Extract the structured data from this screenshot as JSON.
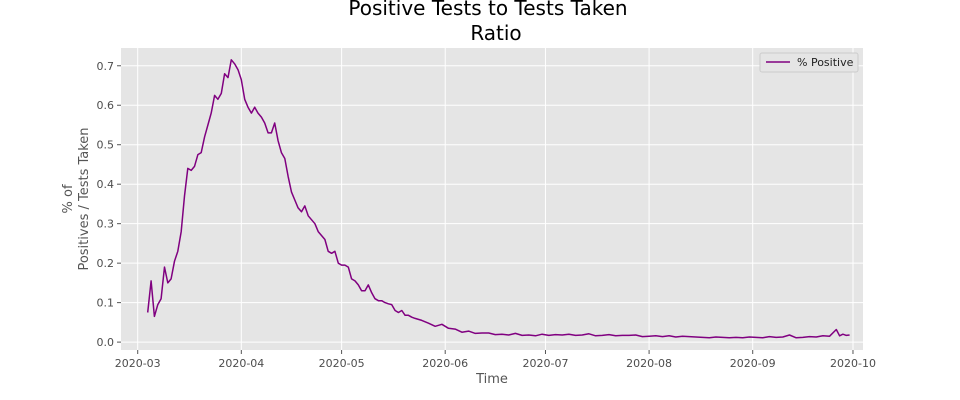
{
  "chart_data": {
    "type": "line",
    "title_lines": [
      "Positive Tests to Tests Taken",
      "Ratio"
    ],
    "xlabel": "Time",
    "ylabel_lines": [
      "% of",
      "Positives / Tests Taken"
    ],
    "xlim": [
      "2020-02-25",
      "2020-10-04"
    ],
    "ylim": [
      -0.02,
      0.745
    ],
    "x_ticks": [
      "2020-03",
      "2020-04",
      "2020-05",
      "2020-06",
      "2020-07",
      "2020-08",
      "2020-09",
      "2020-10"
    ],
    "x_tick_dates": [
      "2020-03-01",
      "2020-04-01",
      "2020-05-01",
      "2020-06-01",
      "2020-07-01",
      "2020-08-01",
      "2020-09-01",
      "2020-10-01"
    ],
    "y_ticks": [
      0.0,
      0.1,
      0.2,
      0.3,
      0.4,
      0.5,
      0.6,
      0.7
    ],
    "y_tick_labels": [
      "0.0",
      "0.1",
      "0.2",
      "0.3",
      "0.4",
      "0.5",
      "0.6",
      "0.7"
    ],
    "grid": true,
    "legend_position": "top-right",
    "series": [
      {
        "name": "% Positive",
        "color": "#800080",
        "x": [
          "2020-03-04",
          "2020-03-05",
          "2020-03-06",
          "2020-03-07",
          "2020-03-08",
          "2020-03-09",
          "2020-03-10",
          "2020-03-11",
          "2020-03-12",
          "2020-03-13",
          "2020-03-14",
          "2020-03-15",
          "2020-03-16",
          "2020-03-17",
          "2020-03-18",
          "2020-03-19",
          "2020-03-20",
          "2020-03-21",
          "2020-03-22",
          "2020-03-23",
          "2020-03-24",
          "2020-03-25",
          "2020-03-26",
          "2020-03-27",
          "2020-03-28",
          "2020-03-29",
          "2020-03-30",
          "2020-03-31",
          "2020-04-01",
          "2020-04-02",
          "2020-04-03",
          "2020-04-04",
          "2020-04-05",
          "2020-04-06",
          "2020-04-07",
          "2020-04-08",
          "2020-04-09",
          "2020-04-10",
          "2020-04-11",
          "2020-04-12",
          "2020-04-13",
          "2020-04-14",
          "2020-04-15",
          "2020-04-16",
          "2020-04-17",
          "2020-04-18",
          "2020-04-19",
          "2020-04-20",
          "2020-04-21",
          "2020-04-22",
          "2020-04-23",
          "2020-04-24",
          "2020-04-25",
          "2020-04-26",
          "2020-04-27",
          "2020-04-28",
          "2020-04-29",
          "2020-04-30",
          "2020-05-01",
          "2020-05-02",
          "2020-05-03",
          "2020-05-04",
          "2020-05-05",
          "2020-05-06",
          "2020-05-07",
          "2020-05-08",
          "2020-05-09",
          "2020-05-10",
          "2020-05-11",
          "2020-05-12",
          "2020-05-13",
          "2020-05-14",
          "2020-05-15",
          "2020-05-16",
          "2020-05-17",
          "2020-05-18",
          "2020-05-19",
          "2020-05-20",
          "2020-05-21",
          "2020-05-22",
          "2020-05-23",
          "2020-05-25",
          "2020-05-27",
          "2020-05-29",
          "2020-05-31",
          "2020-06-02",
          "2020-06-04",
          "2020-06-06",
          "2020-06-08",
          "2020-06-10",
          "2020-06-12",
          "2020-06-14",
          "2020-06-16",
          "2020-06-18",
          "2020-06-20",
          "2020-06-22",
          "2020-06-24",
          "2020-06-26",
          "2020-06-28",
          "2020-06-30",
          "2020-07-02",
          "2020-07-04",
          "2020-07-06",
          "2020-07-08",
          "2020-07-10",
          "2020-07-12",
          "2020-07-14",
          "2020-07-16",
          "2020-07-18",
          "2020-07-20",
          "2020-07-22",
          "2020-07-24",
          "2020-07-26",
          "2020-07-28",
          "2020-07-30",
          "2020-08-01",
          "2020-08-03",
          "2020-08-05",
          "2020-08-07",
          "2020-08-09",
          "2020-08-11",
          "2020-08-13",
          "2020-08-15",
          "2020-08-17",
          "2020-08-19",
          "2020-08-21",
          "2020-08-23",
          "2020-08-25",
          "2020-08-27",
          "2020-08-29",
          "2020-08-31",
          "2020-09-02",
          "2020-09-04",
          "2020-09-06",
          "2020-09-08",
          "2020-09-10",
          "2020-09-12",
          "2020-09-14",
          "2020-09-16",
          "2020-09-18",
          "2020-09-20",
          "2020-09-22",
          "2020-09-24",
          "2020-09-26",
          "2020-09-27",
          "2020-09-28",
          "2020-09-29",
          "2020-09-30"
        ],
        "values": [
          0.075,
          0.155,
          0.065,
          0.095,
          0.11,
          0.19,
          0.15,
          0.16,
          0.205,
          0.23,
          0.28,
          0.37,
          0.44,
          0.435,
          0.445,
          0.475,
          0.48,
          0.52,
          0.55,
          0.58,
          0.625,
          0.615,
          0.63,
          0.68,
          0.67,
          0.715,
          0.705,
          0.69,
          0.665,
          0.615,
          0.595,
          0.58,
          0.595,
          0.58,
          0.57,
          0.555,
          0.53,
          0.53,
          0.555,
          0.51,
          0.48,
          0.465,
          0.42,
          0.38,
          0.36,
          0.34,
          0.33,
          0.345,
          0.32,
          0.31,
          0.3,
          0.28,
          0.27,
          0.26,
          0.23,
          0.225,
          0.23,
          0.2,
          0.195,
          0.195,
          0.19,
          0.16,
          0.155,
          0.145,
          0.13,
          0.13,
          0.145,
          0.125,
          0.11,
          0.105,
          0.105,
          0.1,
          0.097,
          0.095,
          0.08,
          0.075,
          0.08,
          0.068,
          0.068,
          0.063,
          0.06,
          0.055,
          0.048,
          0.04,
          0.045,
          0.035,
          0.033,
          0.025,
          0.028,
          0.022,
          0.023,
          0.023,
          0.019,
          0.02,
          0.018,
          0.022,
          0.017,
          0.018,
          0.016,
          0.02,
          0.017,
          0.019,
          0.018,
          0.02,
          0.017,
          0.018,
          0.021,
          0.016,
          0.017,
          0.019,
          0.016,
          0.017,
          0.017,
          0.018,
          0.014,
          0.015,
          0.016,
          0.014,
          0.016,
          0.013,
          0.015,
          0.014,
          0.013,
          0.012,
          0.011,
          0.013,
          0.012,
          0.011,
          0.012,
          0.011,
          0.013,
          0.012,
          0.011,
          0.014,
          0.012,
          0.013,
          0.018,
          0.011,
          0.012,
          0.014,
          0.013,
          0.016,
          0.015,
          0.032,
          0.016,
          0.02,
          0.017,
          0.018
        ]
      }
    ]
  }
}
